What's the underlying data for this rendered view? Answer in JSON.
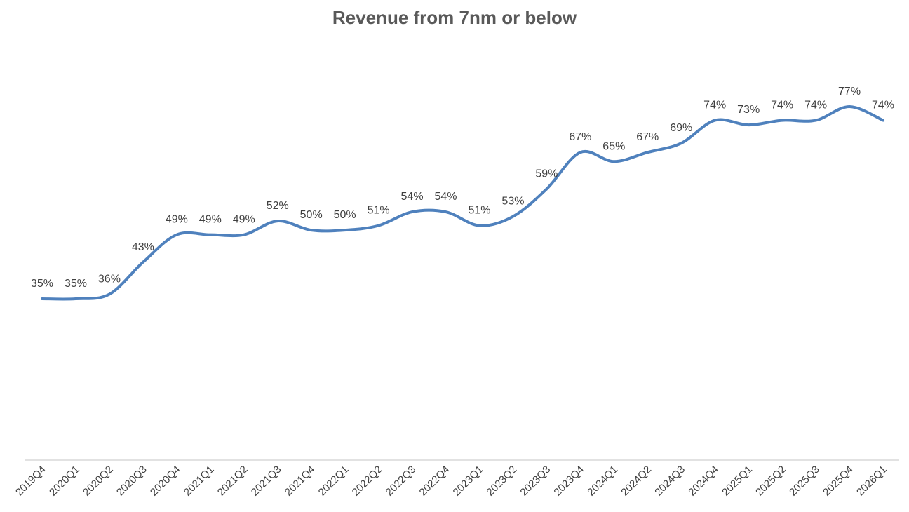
{
  "chart_data": {
    "type": "line",
    "title": "Revenue from 7nm or below",
    "xlabel": "",
    "ylabel": "",
    "ylim": [
      0,
      85
    ],
    "grid": false,
    "legend": "none",
    "line_color": "#4F81BD",
    "categories": [
      "2019Q4",
      "2020Q1",
      "2020Q2",
      "2020Q3",
      "2020Q4",
      "2021Q1",
      "2021Q2",
      "2021Q3",
      "2021Q4",
      "2022Q1",
      "2022Q2",
      "2022Q3",
      "2022Q4",
      "2023Q1",
      "2023Q2",
      "2023Q3",
      "2023Q4",
      "2024Q1",
      "2024Q2",
      "2024Q3",
      "2024Q4",
      "2025Q1",
      "2025Q2",
      "2025Q3",
      "2025Q4",
      "2026Q1"
    ],
    "series": [
      {
        "name": "Revenue from 7nm or below",
        "values": [
          35,
          35,
          36,
          43,
          49,
          49,
          49,
          52,
          50,
          50,
          51,
          54,
          54,
          51,
          53,
          59,
          67,
          65,
          67,
          69,
          74,
          73,
          74,
          74,
          77,
          74
        ],
        "labels": [
          "35%",
          "35%",
          "36%",
          "43%",
          "49%",
          "49%",
          "49%",
          "52%",
          "50%",
          "50%",
          "51%",
          "54%",
          "54%",
          "51%",
          "53%",
          "59%",
          "67%",
          "65%",
          "67%",
          "69%",
          "74%",
          "73%",
          "74%",
          "74%",
          "77%",
          "74%"
        ]
      }
    ]
  }
}
